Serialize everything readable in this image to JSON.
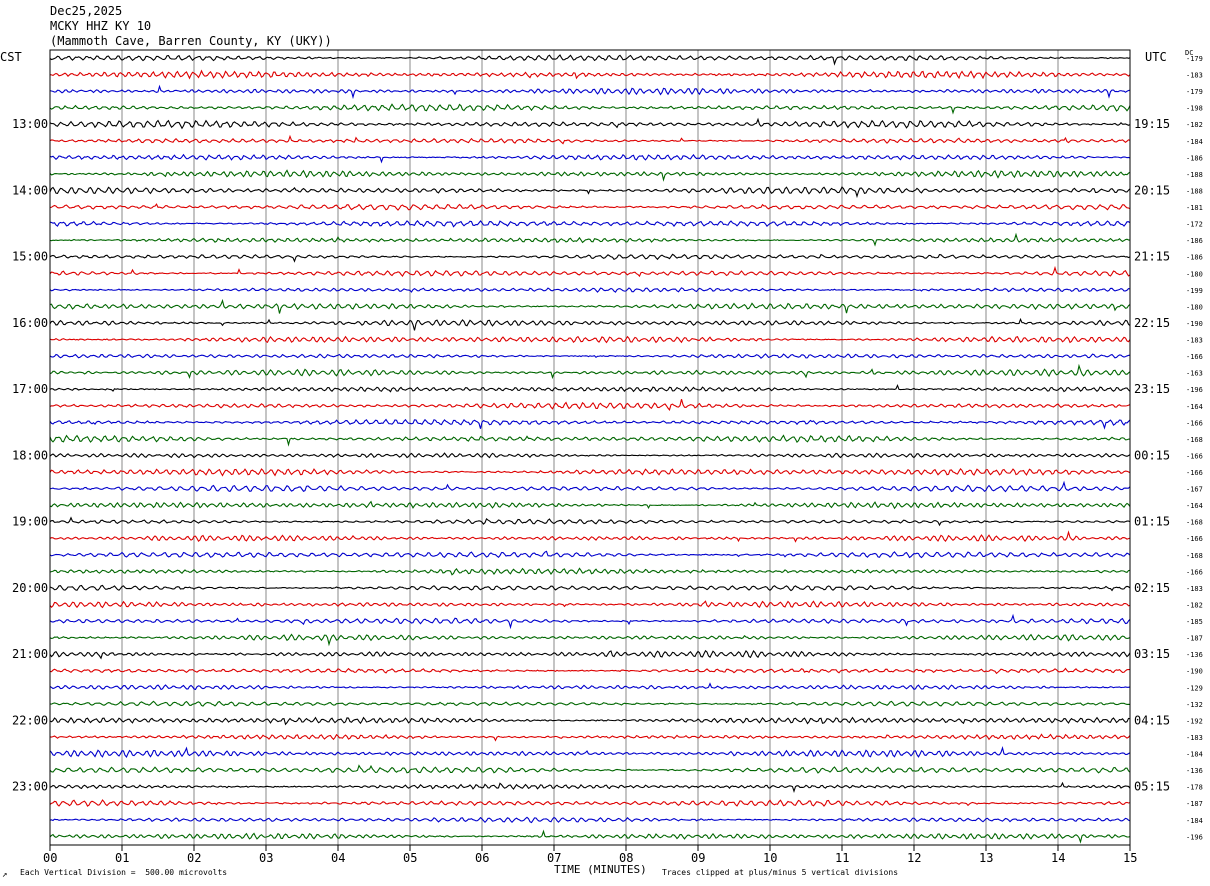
{
  "header": {
    "date": "Dec25,2025",
    "station": "MCKY HHZ KY 10",
    "location": "(Mammoth Cave, Barren County, KY (UKY))"
  },
  "left_axis_label": "CST",
  "right_axis_label": "UTC",
  "dc_label": "DC",
  "footer": {
    "left_mark": "↗",
    "scale_text": "Each Vertical Division =  500.00 microvolts",
    "xlabel": "TIME (MINUTES)",
    "clip_text": "Traces clipped at plus/minus 5 vertical divisions"
  },
  "colors": {
    "trace_cycle": [
      "#000000",
      "#dd0000",
      "#0000cc",
      "#006600"
    ],
    "grid": "#888888",
    "frame": "#000000"
  },
  "chart_data": {
    "type": "line",
    "subtype": "helicorder",
    "title": "MCKY HHZ KY 10",
    "xlabel": "TIME (MINUTES)",
    "xlim": [
      0,
      15
    ],
    "x_ticks": [
      "00",
      "01",
      "02",
      "03",
      "04",
      "05",
      "06",
      "07",
      "08",
      "09",
      "10",
      "11",
      "12",
      "13",
      "14",
      "15"
    ],
    "rows_per_hour": 4,
    "row_count": 48,
    "left_hour_labels": [
      {
        "row": 4,
        "label": "13:00"
      },
      {
        "row": 8,
        "label": "14:00"
      },
      {
        "row": 12,
        "label": "15:00"
      },
      {
        "row": 16,
        "label": "16:00"
      },
      {
        "row": 20,
        "label": "17:00"
      },
      {
        "row": 24,
        "label": "18:00"
      },
      {
        "row": 28,
        "label": "19:00"
      },
      {
        "row": 32,
        "label": "20:00"
      },
      {
        "row": 36,
        "label": "21:00"
      },
      {
        "row": 40,
        "label": "22:00"
      },
      {
        "row": 44,
        "label": "23:00"
      }
    ],
    "right_hour_labels": [
      {
        "row": 4,
        "label": "19:15"
      },
      {
        "row": 8,
        "label": "20:15"
      },
      {
        "row": 12,
        "label": "21:15"
      },
      {
        "row": 16,
        "label": "22:15"
      },
      {
        "row": 20,
        "label": "23:15"
      },
      {
        "row": 24,
        "label": "00:15"
      },
      {
        "row": 28,
        "label": "01:15"
      },
      {
        "row": 32,
        "label": "02:15"
      },
      {
        "row": 36,
        "label": "03:15"
      },
      {
        "row": 40,
        "label": "04:15"
      },
      {
        "row": 44,
        "label": "05:15"
      }
    ],
    "dc_offsets": [
      "-179",
      "-183",
      "-179",
      "-198",
      "-182",
      "-184",
      "-186",
      "-188",
      "-188",
      "-181",
      "-172",
      "-186",
      "-186",
      "-180",
      "-199",
      "-180",
      "-190",
      "-183",
      "-166",
      "-163",
      "-196",
      "-164",
      "-166",
      "-168",
      "-166",
      "-166",
      "-167",
      "-164",
      "-168",
      "-166",
      "-168",
      "-166",
      "-183",
      "-182",
      "-185",
      "-187",
      "-136",
      "-190",
      "-129",
      "-132",
      "-192",
      "-183",
      "-184",
      "-136",
      "-178",
      "-187",
      "-184",
      "-196"
    ],
    "scale_per_division_microvolts": 500.0,
    "clip_divisions": 5
  }
}
